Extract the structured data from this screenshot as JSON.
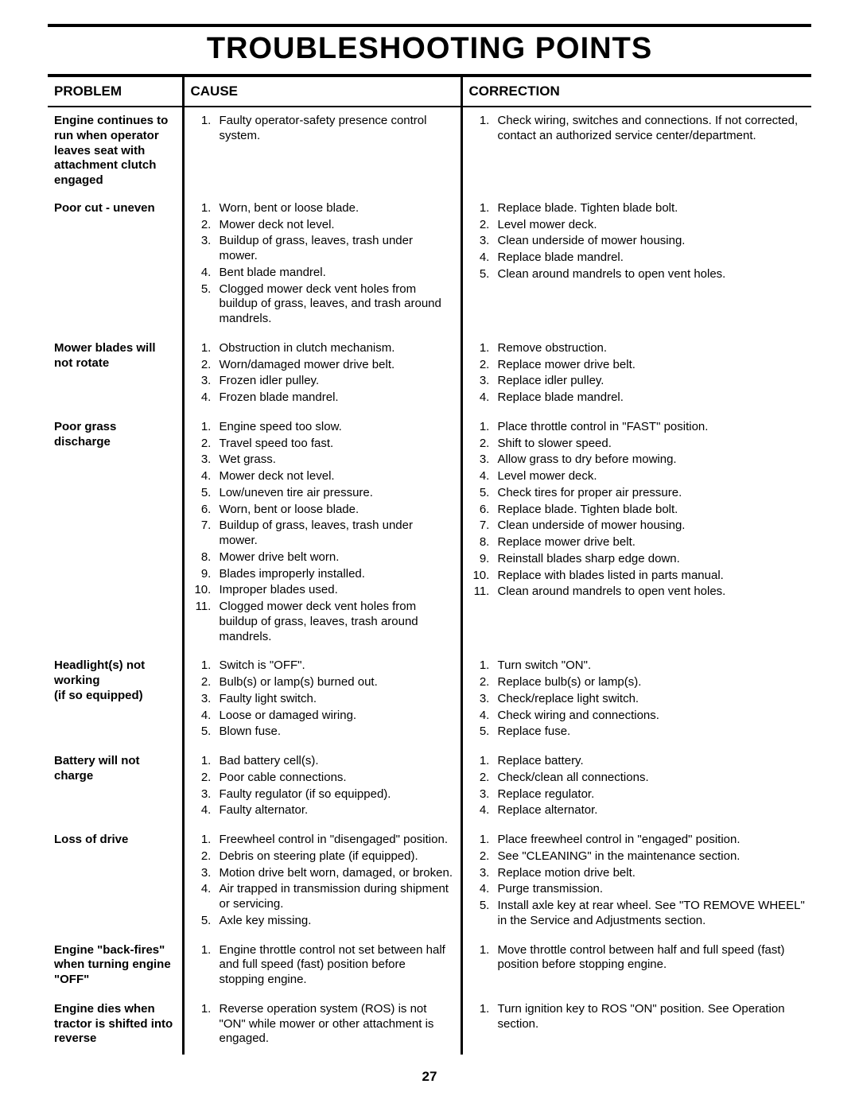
{
  "page_number": "27",
  "title": "TROUBLESHOOTING POINTS",
  "headers": {
    "problem": "PROBLEM",
    "cause": "CAUSE",
    "correction": "CORRECTION"
  },
  "rows": [
    {
      "problem": "Engine continues to run when oper­ator leaves seat with attachment clutch engaged",
      "causes": [
        "Faulty operator-safety presence control system."
      ],
      "corrections": [
        "Check wiring, switches and connections. If not corrected, contact an authorized service center/department."
      ]
    },
    {
      "problem": "Poor cut - uneven",
      "causes": [
        "Worn, bent or loose blade.",
        "Mower deck not level.",
        "Buildup of grass, leaves, trash under mower.",
        "Bent blade mandrel.",
        "Clogged mower deck vent holes from buildup of grass, leaves, and trash around mandrels."
      ],
      "corrections": [
        "Replace blade. Tighten blade bolt.",
        "Level mower deck.",
        "Clean underside of mower housing.",
        "Replace blade mandrel.",
        "Clean around mandrels to open vent holes."
      ]
    },
    {
      "problem": "Mower blades will not rotate",
      "causes": [
        "Obstruction in clutch mechanism.",
        "Worn/damaged mower drive belt.",
        "Frozen idler pulley.",
        "Frozen blade mandrel."
      ],
      "corrections": [
        "Remove obstruction.",
        "Replace mower drive belt.",
        "Replace idler pulley.",
        "Replace blade mandrel."
      ]
    },
    {
      "problem": "Poor grass discharge",
      "causes": [
        "Engine speed too slow.",
        "Travel speed too fast.",
        "Wet grass.",
        "Mower deck not level.",
        "Low/uneven tire air pressure.",
        "Worn, bent or loose blade.",
        "Buildup of grass, leaves, trash under mower.",
        "Mower drive belt worn.",
        "Blades improperly installed.",
        "Improper blades used.",
        "Clogged mower deck vent holes from buildup of grass, leaves, trash around mandrels."
      ],
      "corrections": [
        "Place throttle control in \"FAST\" position.",
        "Shift to slower speed.",
        "Allow grass to dry before mowing.",
        "Level mower deck.",
        "Check tires for proper air pressure.",
        "Replace blade. Tighten blade bolt.",
        "Clean underside of mower housing.",
        "Replace mower drive belt.",
        "Reinstall blades sharp edge down.",
        "Replace with blades listed in parts manual.",
        "Clean around mandrels to open vent holes."
      ]
    },
    {
      "problem": "Headlight(s) not working\n(if so equipped)",
      "causes": [
        "Switch is \"OFF\".",
        "Bulb(s) or lamp(s) burned out.",
        "Faulty light switch.",
        "Loose or damaged wiring.",
        "Blown fuse."
      ],
      "corrections": [
        "Turn switch \"ON\".",
        "Replace bulb(s) or lamp(s).",
        "Check/replace light switch.",
        "Check wiring and connections.",
        "Replace fuse."
      ]
    },
    {
      "problem": "Battery will not charge",
      "causes": [
        "Bad battery cell(s).",
        "Poor cable connections.",
        "Faulty regulator (if so equipped).",
        "Faulty alternator."
      ],
      "corrections": [
        "Replace battery.",
        "Check/clean all connections.",
        "Replace regulator.",
        "Replace alternator."
      ]
    },
    {
      "problem": "Loss of drive",
      "causes": [
        "Freewheel control in \"disengaged\" position.",
        "Debris on steering plate (if equipped).",
        "Motion drive belt worn, damaged, or broken.",
        "Air trapped in transmission during shipment or servicing.",
        "Axle key missing."
      ],
      "corrections": [
        "Place freewheel control in \"engaged\" position.",
        "See \"CLEANING\" in the maintenance section.",
        "Replace motion drive belt.",
        "Purge transmission.",
        "Install axle key at rear wheel. See \"TO REMOVE WHEEL\" in the Service and Adjustments section."
      ]
    },
    {
      "problem": "Engine \"back-fires\" when turn­ing engine \"OFF\"",
      "causes": [
        "Engine throttle control not set between half and full speed (fast) position before stopping engine."
      ],
      "corrections": [
        "Move throttle control between half and full speed (fast) position before stopping engine."
      ]
    },
    {
      "problem": "Engine dies when tractor is shifted into reverse",
      "causes": [
        "Reverse operation system (ROS) is not \"ON\" while mower or other attachment is engaged."
      ],
      "corrections": [
        "Turn ignition key to ROS \"ON\" position. See Operation section."
      ]
    }
  ]
}
